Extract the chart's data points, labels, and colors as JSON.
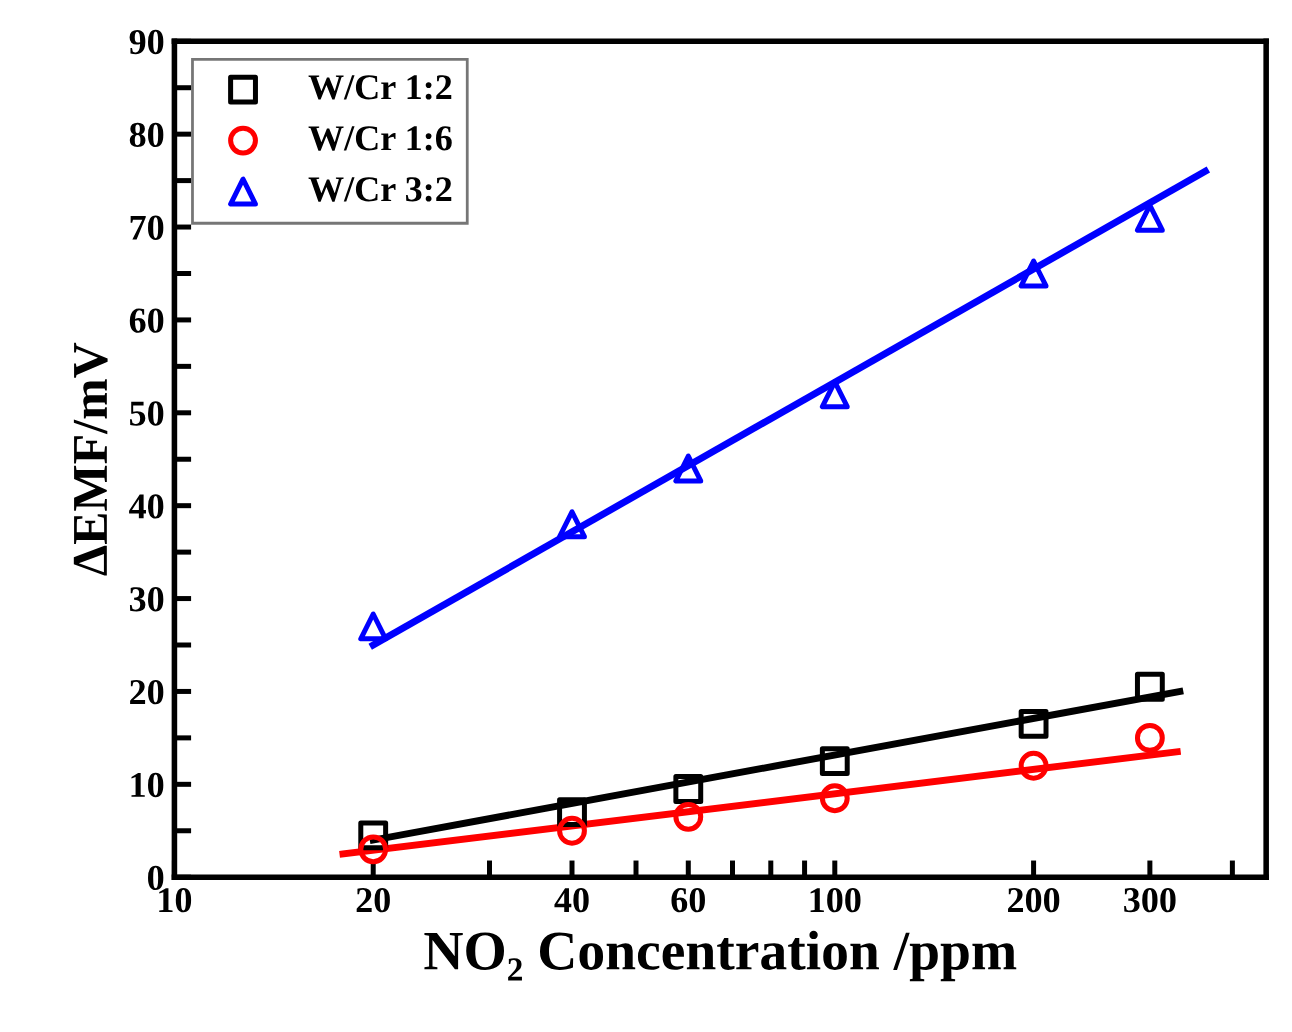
{
  "chart_data": {
    "type": "scatter",
    "xlabel": "NO₂ Concentration /ppm",
    "ylabel": "ΔEMF/mV",
    "log": "x",
    "xlim": [
      10,
      450
    ],
    "xticks": [
      10,
      20,
      {
        "value": 30,
        "label": null
      },
      40,
      {
        "value": 50,
        "label": null
      },
      60,
      {
        "value": 70,
        "label": null
      },
      {
        "value": 80,
        "label": null
      },
      {
        "value": 90,
        "label": null
      },
      100,
      200,
      300,
      {
        "value": 400,
        "label": null
      }
    ],
    "ylim": [
      0,
      90
    ],
    "yticks": [
      0,
      {
        "value": 5,
        "label": null
      },
      10,
      {
        "value": 15,
        "label": null
      },
      20,
      {
        "value": 25,
        "label": null
      },
      30,
      {
        "value": 35,
        "label": null
      },
      40,
      {
        "value": 45,
        "label": null
      },
      50,
      {
        "value": 55,
        "label": null
      },
      60,
      {
        "value": 65,
        "label": null
      },
      70,
      {
        "value": 75,
        "label": null
      },
      80,
      {
        "value": 85,
        "label": null
      },
      90
    ],
    "legend": "top left",
    "grid": false,
    "series": [
      {
        "name": "W/Cr 1:2",
        "color": "#000000",
        "marker": "square",
        "x": [
          20,
          40,
          60,
          100,
          200,
          300
        ],
        "values": [
          4.5,
          7,
          9.5,
          12.5,
          16.5,
          20.5
        ]
      },
      {
        "name": "W/Cr 1:6",
        "color": "#ff0000",
        "marker": "circle",
        "x": [
          20,
          40,
          60,
          100,
          200,
          300
        ],
        "values": [
          3,
          5,
          6.5,
          8.5,
          12,
          15
        ]
      },
      {
        "name": "W/Cr 3:2",
        "color": "#0000ff",
        "marker": "triangle",
        "x": [
          20,
          40,
          60,
          100,
          200,
          300
        ],
        "values": [
          27,
          38,
          44,
          52,
          65,
          71
        ]
      },
      {
        "type": "line",
        "color": "#000000",
        "marker": "none",
        "x": [
          20,
          333
        ],
        "values": [
          4,
          20
        ]
      },
      {
        "type": "line",
        "color": "#ff0000",
        "marker": "none",
        "x": [
          18,
          330
        ],
        "values": [
          2.5,
          13.5
        ]
      },
      {
        "type": "line",
        "color": "#0000ff",
        "marker": "none",
        "x": [
          20,
          364
        ],
        "values": [
          25,
          76
        ]
      }
    ]
  }
}
